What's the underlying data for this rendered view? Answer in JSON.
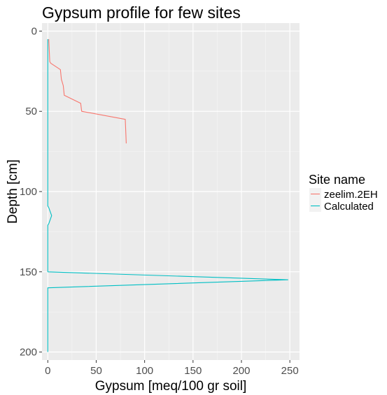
{
  "chart_data": {
    "type": "line",
    "title": "Gypsum profile for few sites",
    "xlabel": "Gypsum [meq/100 gr soil]",
    "ylabel": "Depth [cm]",
    "xlim": [
      -6,
      260
    ],
    "ylim": [
      205,
      -5
    ],
    "y_reversed": true,
    "xticks": [
      0,
      50,
      100,
      150,
      200,
      250
    ],
    "yticks": [
      0,
      50,
      100,
      150,
      200
    ],
    "grid": true,
    "legend_position": "right",
    "legend_title": "Site name",
    "series": [
      {
        "name": "zeelim.2EH",
        "color": "#F8766D",
        "points": [
          [
            1,
            5
          ],
          [
            2,
            19
          ],
          [
            3,
            20
          ],
          [
            13,
            24
          ],
          [
            14,
            30
          ],
          [
            16,
            34
          ],
          [
            17,
            40
          ],
          [
            34,
            45
          ],
          [
            35,
            50
          ],
          [
            80,
            55
          ],
          [
            81,
            70
          ]
        ]
      },
      {
        "name": "Calculated",
        "color": "#00BFC4",
        "points": [
          [
            0,
            5
          ],
          [
            0,
            109
          ],
          [
            1,
            110
          ],
          [
            4,
            115
          ],
          [
            1,
            120
          ],
          [
            0,
            121
          ],
          [
            0,
            150
          ],
          [
            248,
            155
          ],
          [
            0,
            160
          ],
          [
            0,
            200
          ]
        ]
      }
    ]
  }
}
